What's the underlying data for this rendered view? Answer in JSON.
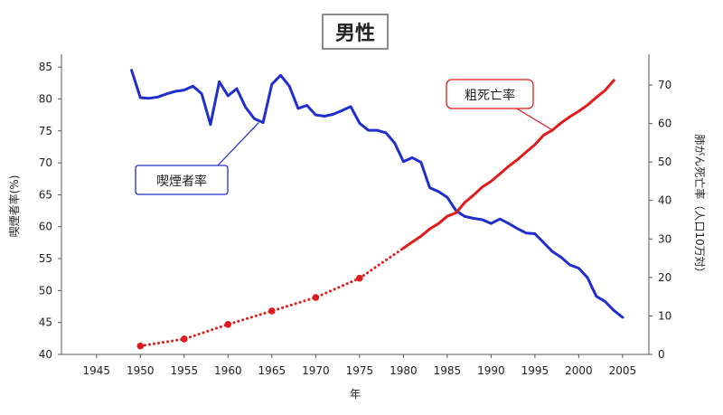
{
  "chart_data": {
    "type": "line",
    "title": "男性",
    "xlabel": "年",
    "ylabel_left": "喫煙者率(%)",
    "ylabel_right": "肺がん死亡率（人口10万対）",
    "x_ticks": [
      1945,
      1950,
      1955,
      1960,
      1965,
      1970,
      1975,
      1980,
      1985,
      1990,
      1995,
      2000,
      2005
    ],
    "xlim": [
      1941,
      2008
    ],
    "y_left_ticks": [
      40,
      45,
      50,
      55,
      60,
      65,
      70,
      75,
      80,
      85
    ],
    "ylim_left": [
      40,
      87
    ],
    "y_right_ticks": [
      0,
      10,
      20,
      30,
      40,
      50,
      60,
      70
    ],
    "ylim_right": [
      0,
      78
    ],
    "grid": false,
    "legend": "none",
    "series": [
      {
        "name": "喫煙者率",
        "axis": "left",
        "color": "#1f2ecc",
        "style": "solid",
        "points": [
          [
            1949,
            84.5
          ],
          [
            1950,
            80.2
          ],
          [
            1951,
            80.1
          ],
          [
            1952,
            80.3
          ],
          [
            1953,
            80.8
          ],
          [
            1954,
            81.2
          ],
          [
            1955,
            81.4
          ],
          [
            1956,
            82.0
          ],
          [
            1957,
            80.8
          ],
          [
            1958,
            76.0
          ],
          [
            1959,
            82.7
          ],
          [
            1960,
            80.5
          ],
          [
            1961,
            81.6
          ],
          [
            1962,
            78.7
          ],
          [
            1963,
            76.9
          ],
          [
            1964,
            76.3
          ],
          [
            1965,
            82.3
          ],
          [
            1966,
            83.7
          ],
          [
            1967,
            82.0
          ],
          [
            1968,
            78.5
          ],
          [
            1969,
            79.0
          ],
          [
            1970,
            77.5
          ],
          [
            1971,
            77.3
          ],
          [
            1972,
            77.6
          ],
          [
            1973,
            78.2
          ],
          [
            1974,
            78.8
          ],
          [
            1975,
            76.2
          ],
          [
            1976,
            75.1
          ],
          [
            1977,
            75.1
          ],
          [
            1978,
            74.7
          ],
          [
            1979,
            73.1
          ],
          [
            1980,
            70.2
          ],
          [
            1981,
            70.8
          ],
          [
            1982,
            70.1
          ],
          [
            1983,
            66.1
          ],
          [
            1984,
            65.5
          ],
          [
            1985,
            64.6
          ],
          [
            1986,
            62.5
          ],
          [
            1987,
            61.6
          ],
          [
            1988,
            61.3
          ],
          [
            1989,
            61.1
          ],
          [
            1990,
            60.5
          ],
          [
            1991,
            61.2
          ],
          [
            1992,
            60.5
          ],
          [
            1993,
            59.7
          ],
          [
            1994,
            59.0
          ],
          [
            1995,
            58.9
          ],
          [
            1996,
            57.5
          ],
          [
            1997,
            56.1
          ],
          [
            1998,
            55.2
          ],
          [
            1999,
            54.0
          ],
          [
            2000,
            53.5
          ],
          [
            2001,
            52.0
          ],
          [
            2002,
            49.1
          ],
          [
            2003,
            48.3
          ],
          [
            2004,
            46.9
          ],
          [
            2005,
            45.8
          ]
        ]
      },
      {
        "name": "粗死亡率",
        "axis": "right",
        "color": "#e01b1b",
        "style": "dotted",
        "markers": [
          1950,
          1955,
          1960,
          1965,
          1970,
          1975
        ],
        "points": [
          [
            1950,
            2.2
          ],
          [
            1955,
            4.0
          ],
          [
            1960,
            7.8
          ],
          [
            1965,
            11.3
          ],
          [
            1970,
            14.8
          ],
          [
            1975,
            19.8
          ],
          [
            1980,
            27.6
          ]
        ]
      },
      {
        "name": "粗死亡率",
        "axis": "right",
        "color": "#e01b1b",
        "style": "solid",
        "points": [
          [
            1980,
            27.6
          ],
          [
            1981,
            29.2
          ],
          [
            1982,
            30.7
          ],
          [
            1983,
            32.6
          ],
          [
            1984,
            34.0
          ],
          [
            1985,
            35.9
          ],
          [
            1986,
            36.8
          ],
          [
            1987,
            39.5
          ],
          [
            1988,
            41.4
          ],
          [
            1989,
            43.5
          ],
          [
            1990,
            45.0
          ],
          [
            1991,
            46.9
          ],
          [
            1992,
            48.9
          ],
          [
            1993,
            50.6
          ],
          [
            1994,
            52.6
          ],
          [
            1995,
            54.5
          ],
          [
            1996,
            57.0
          ],
          [
            1997,
            58.3
          ],
          [
            1998,
            60.2
          ],
          [
            1999,
            61.8
          ],
          [
            2000,
            63.2
          ],
          [
            2001,
            64.8
          ],
          [
            2002,
            66.8
          ],
          [
            2003,
            68.6
          ],
          [
            2004,
            71.2
          ]
        ]
      }
    ],
    "annotations": [
      {
        "text": "喫煙者率",
        "color": "#1f2ecc",
        "point_x": 1963.5,
        "point_y_left": 76.3
      },
      {
        "text": "粗死亡率",
        "color": "#e01b1b",
        "point_x": 1997.0,
        "point_y_right": 58.3
      }
    ]
  }
}
